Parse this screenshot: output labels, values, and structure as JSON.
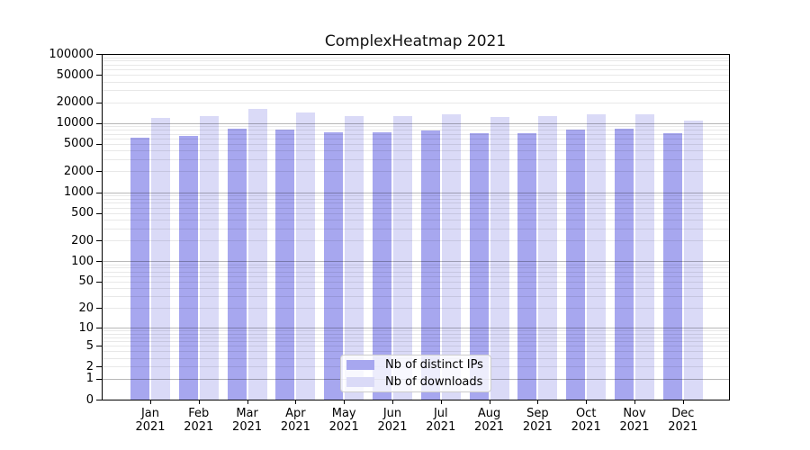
{
  "title": "ComplexHeatmap 2021",
  "legend": {
    "position": "lower center",
    "items": [
      {
        "label": "Nb of distinct IPs",
        "color": "#a7a7ef"
      },
      {
        "label": "Nb of downloads",
        "color": "#dadaf7"
      }
    ]
  },
  "chart_data": {
    "type": "bar",
    "title": "ComplexHeatmap 2021",
    "categories": [
      "Jan",
      "Feb",
      "Mar",
      "Apr",
      "May",
      "Jun",
      "Jul",
      "Aug",
      "Sep",
      "Oct",
      "Nov",
      "Dec"
    ],
    "year_label": "2021",
    "series": [
      {
        "name": "Nb of distinct IPs",
        "color": "#a7a7ef",
        "values": [
          6240,
          6550,
          8420,
          8000,
          7380,
          7380,
          7840,
          7240,
          7090,
          8170,
          8240,
          7240
        ]
      },
      {
        "name": "Nb of downloads",
        "color": "#dadaf7",
        "values": [
          11730,
          12560,
          16110,
          14290,
          12820,
          12560,
          13220,
          12190,
          12560,
          13460,
          13460,
          10810
        ]
      }
    ],
    "yscale": "log1p",
    "ylim": [
      0,
      100000
    ],
    "ytick_labels": [
      "0",
      "1",
      "2",
      "5",
      "10",
      "20",
      "50",
      "100",
      "200",
      "500",
      "1000",
      "2000",
      "5000",
      "10000",
      "20000",
      "50000",
      "100000"
    ],
    "xlabel": "",
    "ylabel": "",
    "grid": {
      "major": "powers of ten",
      "minor": "2-9 per decade",
      "drawn_over_bars": true
    },
    "legend_position": "lower center"
  }
}
